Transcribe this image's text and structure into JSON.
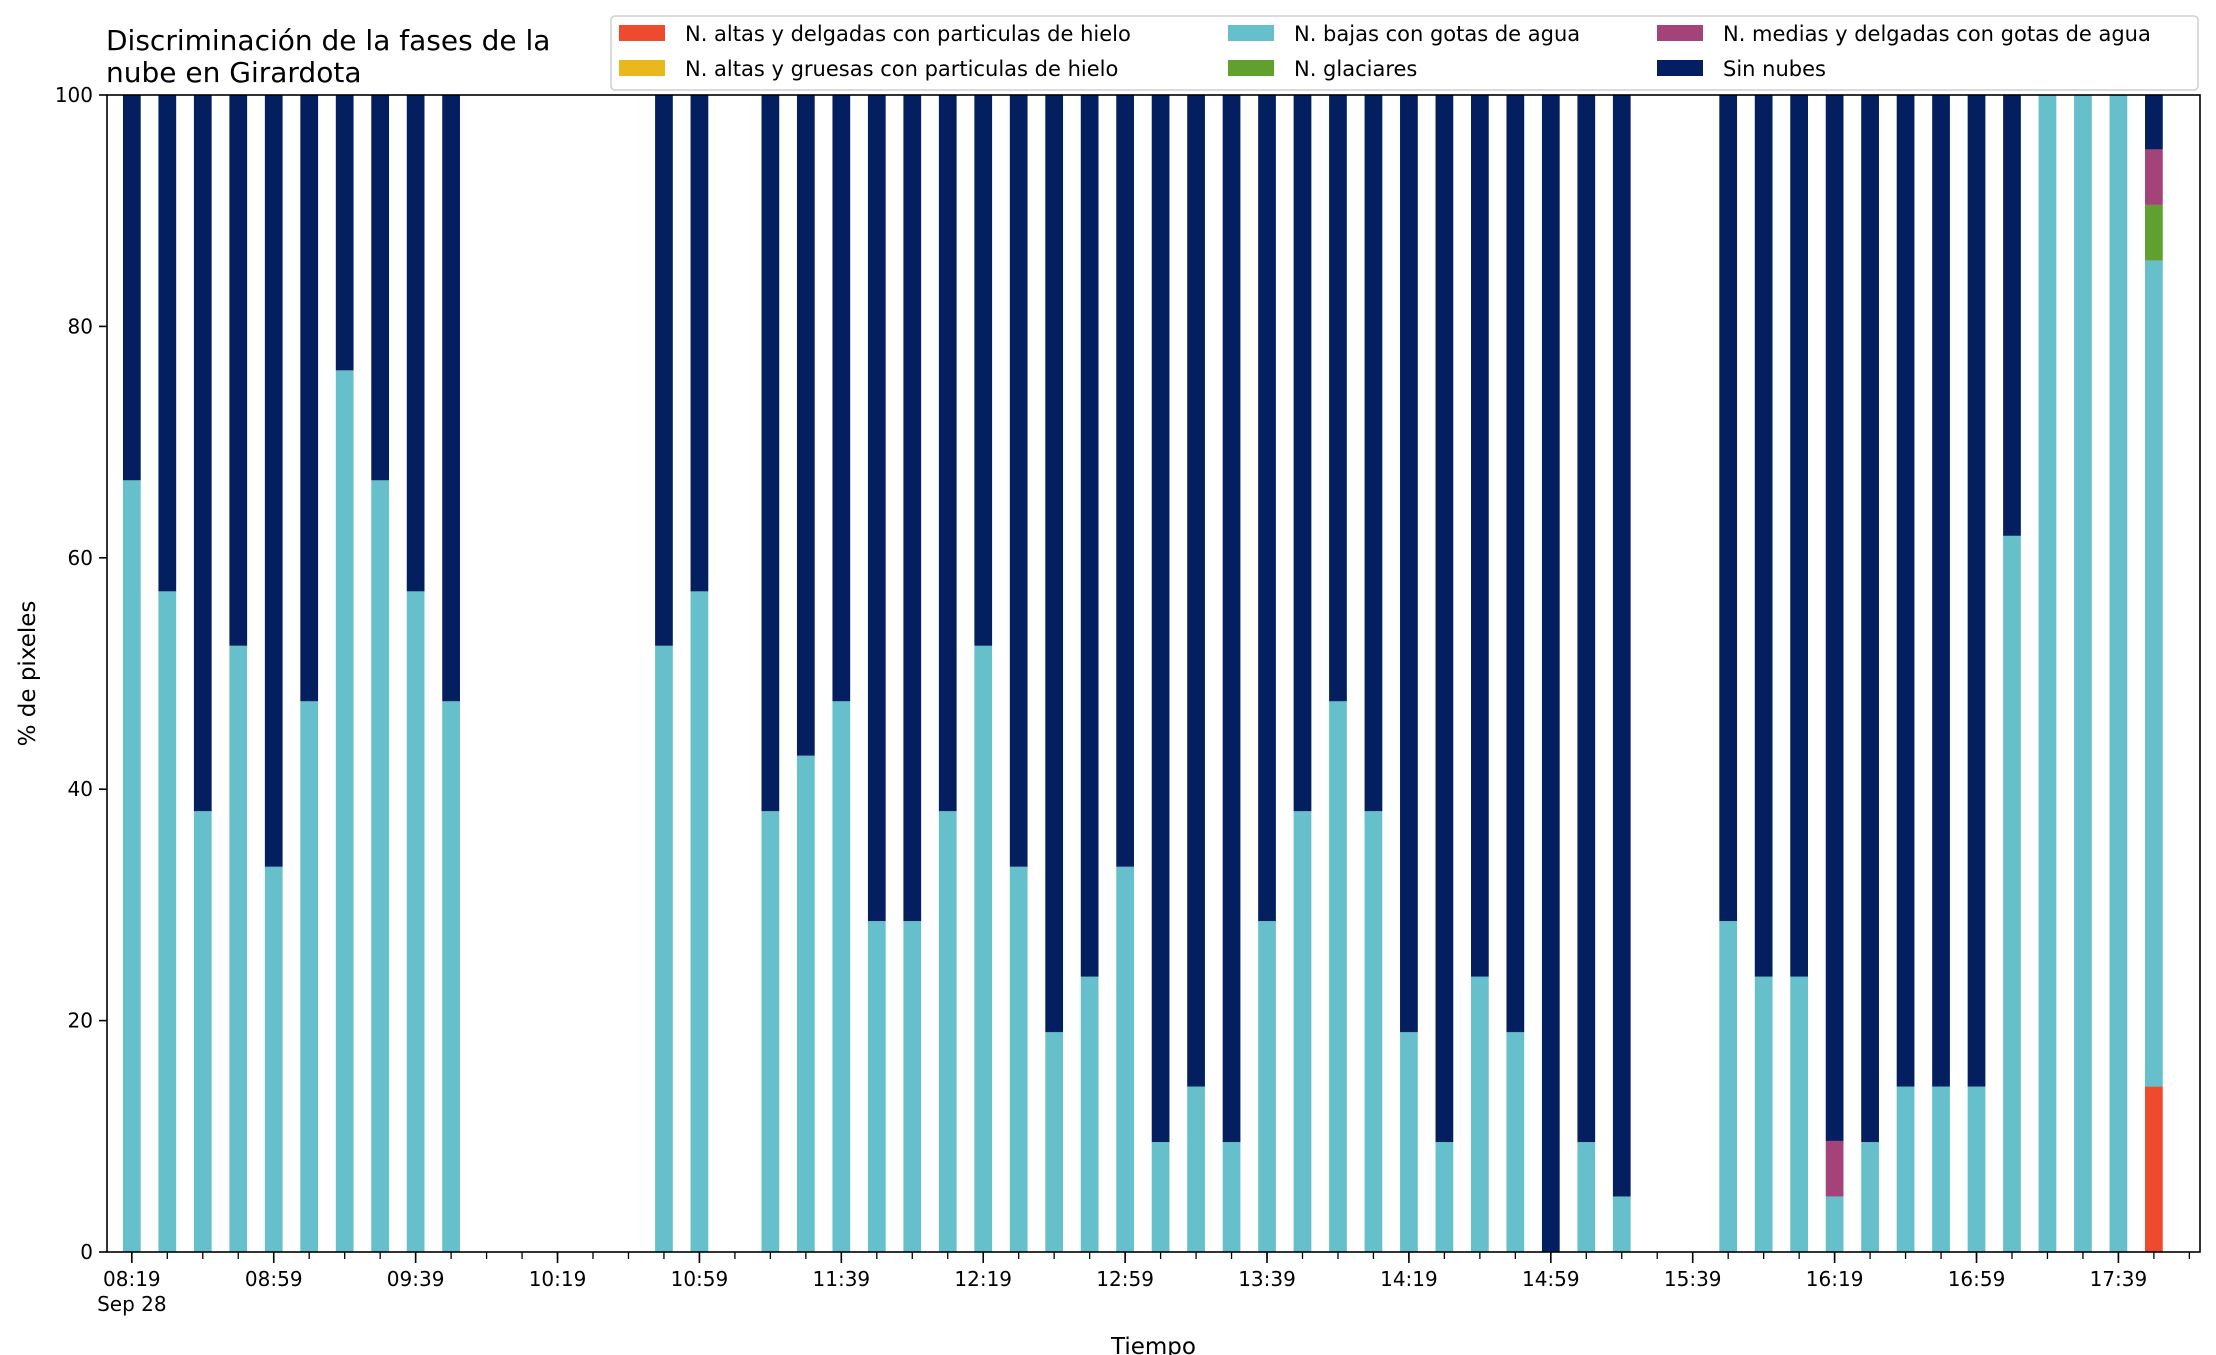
{
  "chart_data": {
    "type": "bar",
    "stacked": true,
    "title": "Discriminación de la fases de la\nnube en Girardota",
    "xlabel": "Tiempo",
    "ylabel": "% de pixeles",
    "ylim": [
      0,
      100
    ],
    "yticks": [
      0,
      20,
      40,
      60,
      80,
      100
    ],
    "grid": false,
    "legend_position": "top-right",
    "x_interval_minutes": 10,
    "x_start": "08:19",
    "x_end": "17:59",
    "xtick_labels": [
      "08:19",
      "08:59",
      "09:39",
      "10:19",
      "10:59",
      "11:39",
      "12:19",
      "12:59",
      "13:39",
      "14:19",
      "14:59",
      "15:39",
      "16:19",
      "16:59",
      "17:39"
    ],
    "xtick_date_label": "Sep 28",
    "x": [
      "08:19",
      "08:29",
      "08:39",
      "08:49",
      "08:59",
      "09:09",
      "09:19",
      "09:29",
      "09:39",
      "09:49",
      "09:59",
      "10:09",
      "10:19",
      "10:29",
      "10:39",
      "10:49",
      "10:59",
      "11:09",
      "11:19",
      "11:29",
      "11:39",
      "11:49",
      "11:59",
      "12:09",
      "12:19",
      "12:29",
      "12:39",
      "12:49",
      "12:59",
      "13:09",
      "13:19",
      "13:29",
      "13:39",
      "13:49",
      "13:59",
      "14:09",
      "14:19",
      "14:29",
      "14:39",
      "14:49",
      "14:59",
      "15:09",
      "15:19",
      "15:29",
      "15:39",
      "15:49",
      "15:59",
      "16:09",
      "16:19",
      "16:29",
      "16:39",
      "16:49",
      "16:59",
      "17:09",
      "17:19",
      "17:29",
      "17:39",
      "17:49"
    ],
    "series": [
      {
        "name": "N. altas y delgadas con particulas de hielo",
        "color": "#ee4a2d",
        "values": [
          0,
          0,
          0,
          0,
          0,
          0,
          0,
          0,
          0,
          0,
          null,
          null,
          null,
          null,
          null,
          0,
          0,
          null,
          0,
          0,
          0,
          0,
          0,
          0,
          0,
          0,
          0,
          0,
          0,
          0,
          0,
          0,
          0,
          0,
          0,
          0,
          0,
          0,
          0,
          0,
          0,
          0,
          0,
          null,
          null,
          0,
          0,
          0,
          0,
          0,
          0,
          0,
          0,
          0,
          0,
          0,
          0,
          14.3
        ]
      },
      {
        "name": "N. altas y gruesas con particulas de hielo",
        "color": "#e9b81c",
        "values": [
          0,
          0,
          0,
          0,
          0,
          0,
          0,
          0,
          0,
          0,
          null,
          null,
          null,
          null,
          null,
          0,
          0,
          null,
          0,
          0,
          0,
          0,
          0,
          0,
          0,
          0,
          0,
          0,
          0,
          0,
          0,
          0,
          0,
          0,
          0,
          0,
          0,
          0,
          0,
          0,
          0,
          0,
          0,
          null,
          null,
          0,
          0,
          0,
          0,
          0,
          0,
          0,
          0,
          0,
          0,
          0,
          0,
          0
        ]
      },
      {
        "name": "N. bajas con gotas de agua",
        "color": "#66c0cc",
        "values": [
          66.7,
          57.1,
          38.1,
          52.4,
          33.3,
          47.6,
          76.2,
          66.7,
          57.1,
          47.6,
          null,
          null,
          null,
          null,
          null,
          52.4,
          57.1,
          null,
          38.1,
          42.9,
          47.6,
          28.6,
          28.6,
          38.1,
          52.4,
          33.3,
          19.0,
          23.8,
          33.3,
          9.5,
          14.3,
          9.5,
          28.6,
          38.1,
          47.6,
          38.1,
          19.0,
          9.5,
          23.8,
          19.0,
          0,
          9.5,
          4.8,
          null,
          null,
          28.6,
          23.8,
          23.8,
          4.8,
          9.5,
          14.3,
          14.3,
          14.3,
          61.9,
          100,
          100,
          100,
          71.4
        ]
      },
      {
        "name": "N. glaciares",
        "color": "#5fa02e",
        "values": [
          0,
          0,
          0,
          0,
          0,
          0,
          0,
          0,
          0,
          0,
          null,
          null,
          null,
          null,
          null,
          0,
          0,
          null,
          0,
          0,
          0,
          0,
          0,
          0,
          0,
          0,
          0,
          0,
          0,
          0,
          0,
          0,
          0,
          0,
          0,
          0,
          0,
          0,
          0,
          0,
          0,
          0,
          0,
          null,
          null,
          0,
          0,
          0,
          0,
          0,
          0,
          0,
          0,
          0,
          0,
          0,
          0,
          4.8
        ]
      },
      {
        "name": "N. medias y delgadas con gotas de agua",
        "color": "#a4437a",
        "values": [
          0,
          0,
          0,
          0,
          0,
          0,
          0,
          0,
          0,
          0,
          null,
          null,
          null,
          null,
          null,
          0,
          0,
          null,
          0,
          0,
          0,
          0,
          0,
          0,
          0,
          0,
          0,
          0,
          0,
          0,
          0,
          0,
          0,
          0,
          0,
          0,
          0,
          0,
          0,
          0,
          0,
          0,
          0,
          null,
          null,
          0,
          0,
          0,
          4.8,
          0,
          0,
          0,
          0,
          0,
          0,
          0,
          0,
          4.8
        ]
      },
      {
        "name": "Sin nubes",
        "color": "#031f5f",
        "values": [
          33.3,
          42.9,
          61.9,
          47.6,
          66.7,
          52.4,
          23.8,
          33.3,
          42.9,
          52.4,
          null,
          null,
          null,
          null,
          null,
          47.6,
          42.9,
          null,
          61.9,
          57.1,
          52.4,
          71.4,
          71.4,
          61.9,
          47.6,
          66.7,
          81.0,
          76.2,
          66.7,
          90.5,
          85.7,
          90.5,
          71.4,
          61.9,
          52.4,
          61.9,
          81.0,
          90.5,
          76.2,
          81.0,
          100,
          90.5,
          95.2,
          null,
          null,
          71.4,
          76.2,
          76.2,
          90.4,
          90.5,
          85.7,
          85.7,
          85.7,
          38.1,
          0,
          0,
          0,
          4.7
        ]
      }
    ],
    "legend": {
      "columns": [
        [
          "N. altas y delgadas con particulas de hielo",
          "N. altas y gruesas con particulas de hielo"
        ],
        [
          "N. bajas con gotas de agua",
          "N. glaciares"
        ],
        [
          "N. medias y delgadas con gotas de agua",
          "Sin nubes"
        ]
      ]
    }
  }
}
